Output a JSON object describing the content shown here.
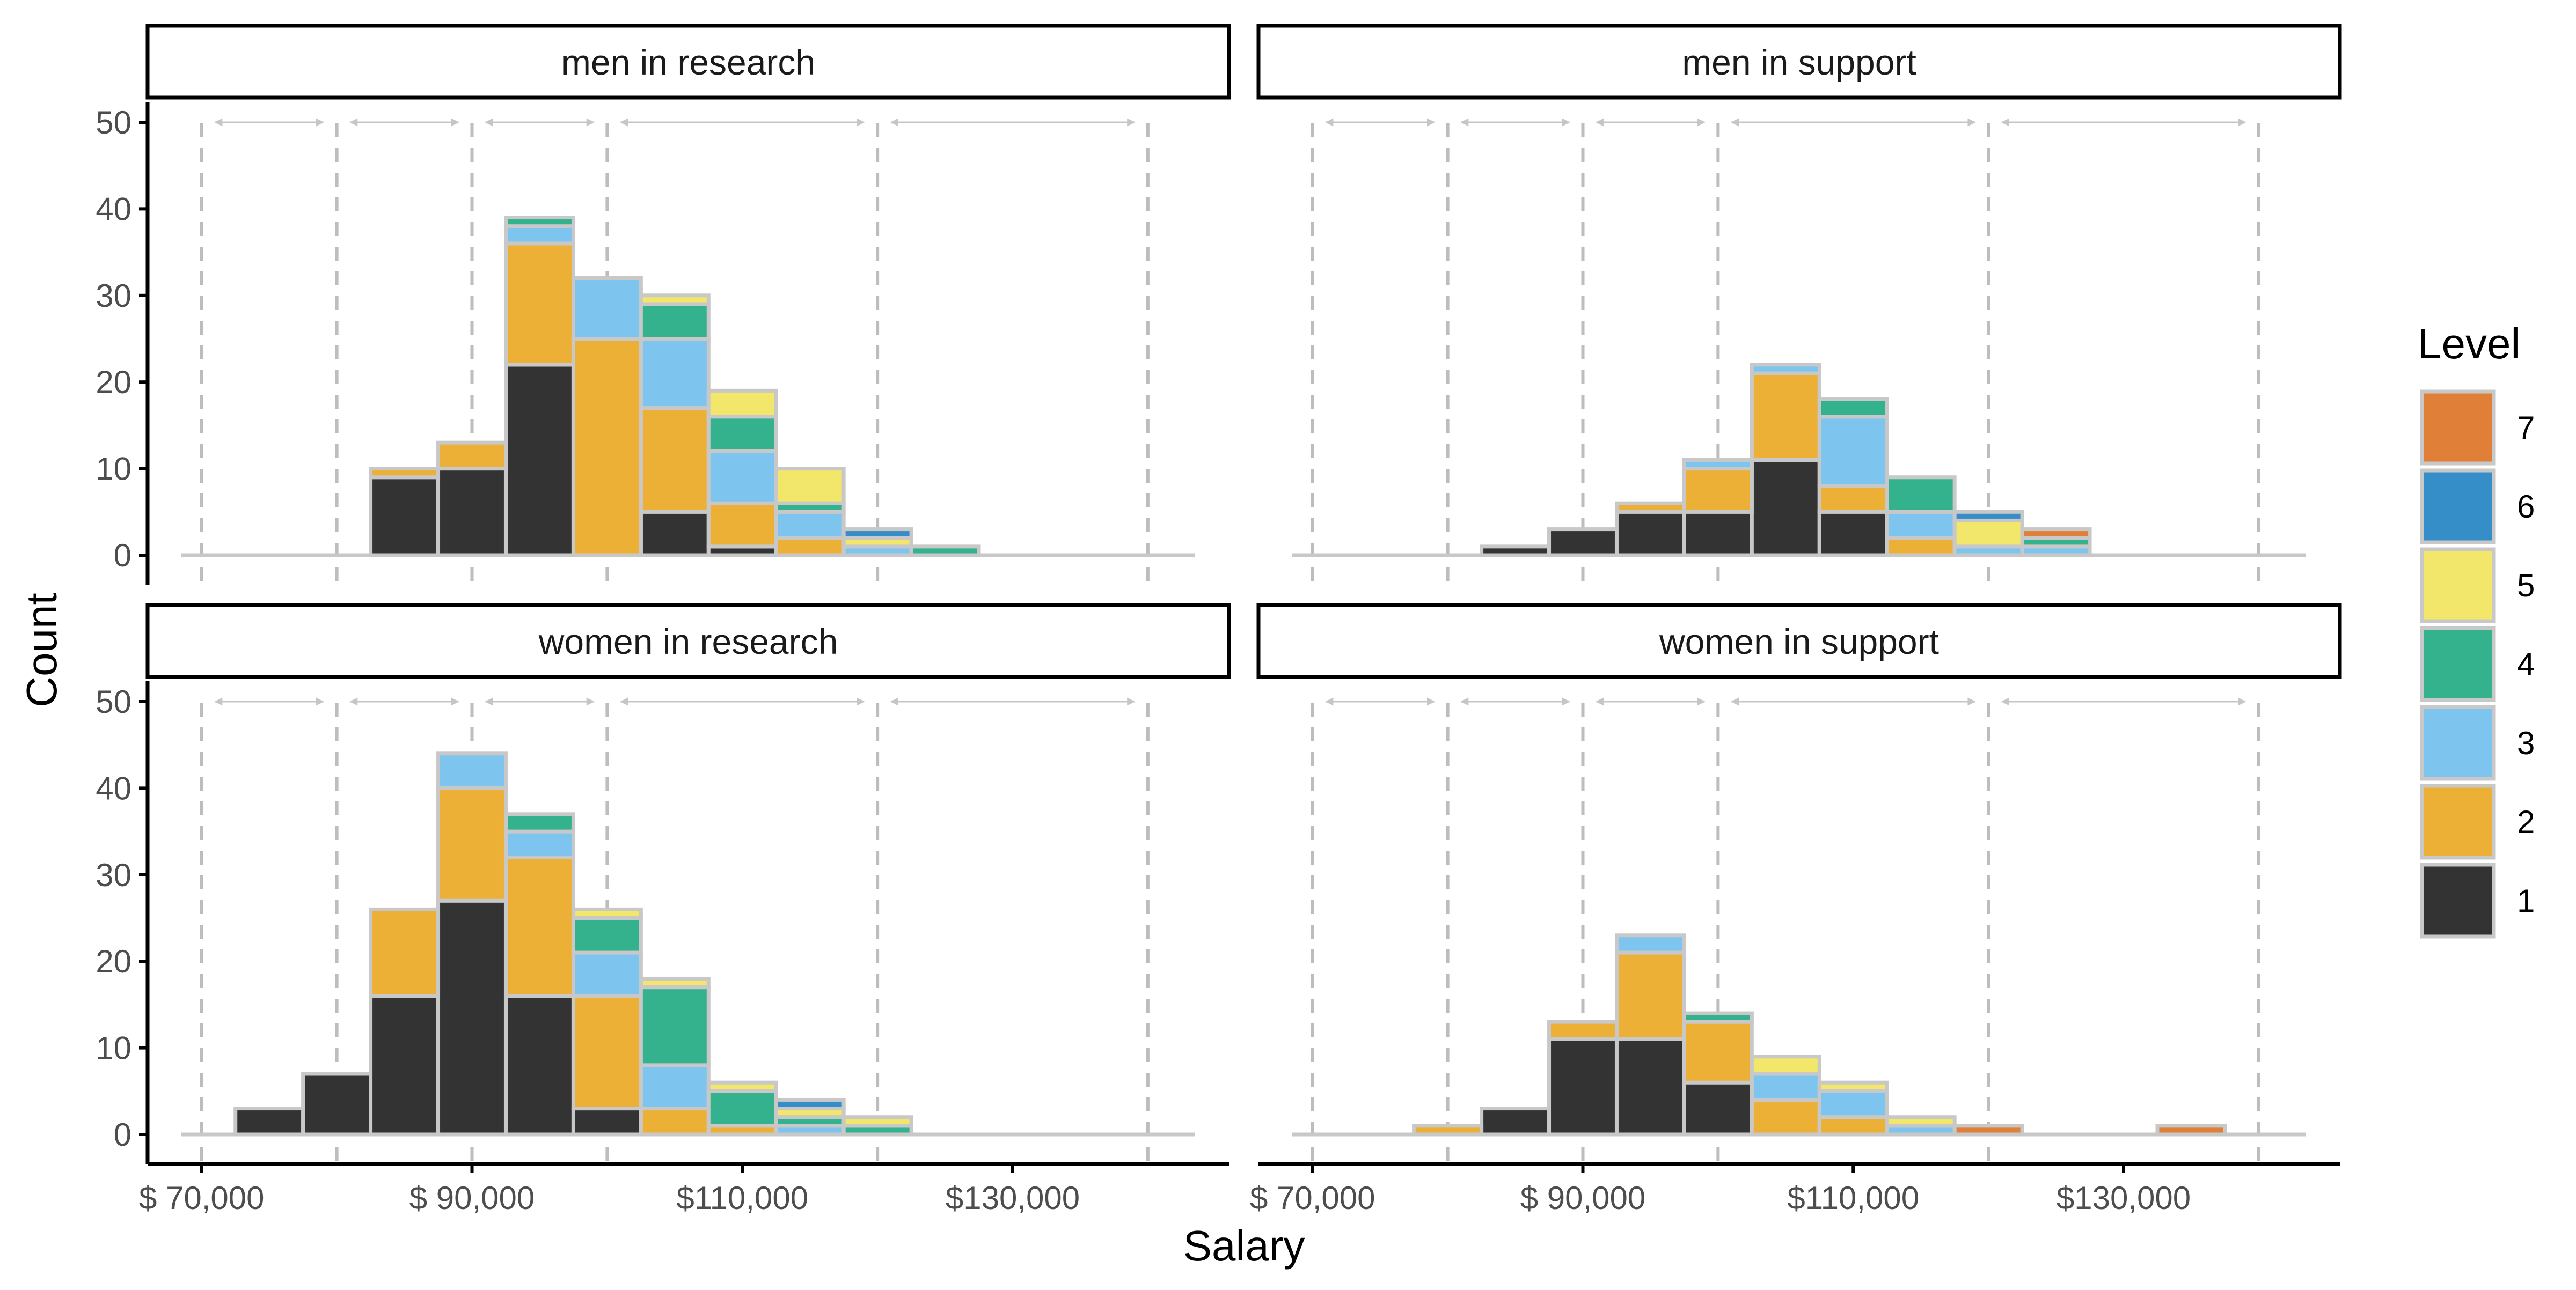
{
  "chart_data": {
    "type": "bar",
    "subtype": "stacked histogram, faceted 2x2",
    "xlabel": "Salary",
    "ylabel": "Count",
    "xlim": [
      66000,
      146000
    ],
    "ylim": [
      0,
      50
    ],
    "x_ticks": [
      70000,
      90000,
      110000,
      130000
    ],
    "x_tick_labels": [
      "$ 70,000",
      "$ 90,000",
      "$110,000",
      "$130,000"
    ],
    "y_ticks": [
      0,
      10,
      20,
      30,
      40,
      50
    ],
    "y_tick_labels": [
      "0",
      "10",
      "20",
      "30",
      "40",
      "50"
    ],
    "bin_width": 5000,
    "bin_starts": [
      72500,
      77500,
      82500,
      87500,
      92500,
      97500,
      102500,
      107500,
      112500,
      117500,
      122500,
      127500,
      132500,
      137500
    ],
    "reference_lines": [
      70000,
      80000,
      90000,
      100000,
      120000,
      140000
    ],
    "range_arrows": [
      [
        71000,
        79000
      ],
      [
        81000,
        89000
      ],
      [
        91000,
        99000
      ],
      [
        101000,
        119000
      ],
      [
        121000,
        139000
      ]
    ],
    "arrow_y": 50,
    "grid": false,
    "legend": {
      "title": "Level",
      "placement": "right",
      "levels": [
        "1",
        "2",
        "3",
        "4",
        "5",
        "6",
        "7"
      ],
      "colors": {
        "1": "#333333",
        "2": "#ebb035",
        "3": "#7dc4ee",
        "4": "#34b28e",
        "5": "#f2e66b",
        "6": "#358ec7",
        "7": "#e07f38"
      }
    },
    "colors": {
      "bar_outline": "#c8c8c8",
      "ref_line": "#bdbdbd",
      "arrow": "#c6c6c6",
      "axis": "#000000",
      "tick_label": "#4d4d4d"
    },
    "panels": [
      {
        "title": "men in research",
        "series": [
          {
            "level": "1",
            "values": [
              0,
              0,
              9,
              10,
              22,
              0,
              5,
              1,
              0,
              0,
              0,
              0,
              0,
              0
            ]
          },
          {
            "level": "2",
            "values": [
              0,
              0,
              1,
              3,
              14,
              25,
              12,
              5,
              2,
              0,
              0,
              0,
              0,
              0
            ]
          },
          {
            "level": "3",
            "values": [
              0,
              0,
              0,
              0,
              2,
              7,
              8,
              6,
              3,
              1,
              0,
              0,
              0,
              0
            ]
          },
          {
            "level": "4",
            "values": [
              0,
              0,
              0,
              0,
              1,
              0,
              4,
              4,
              1,
              0,
              1,
              0,
              0,
              0
            ]
          },
          {
            "level": "5",
            "values": [
              0,
              0,
              0,
              0,
              0,
              0,
              1,
              3,
              4,
              1,
              0,
              0,
              0,
              0
            ]
          },
          {
            "level": "6",
            "values": [
              0,
              0,
              0,
              0,
              0,
              0,
              0,
              0,
              0,
              1,
              0,
              0,
              0,
              0
            ]
          },
          {
            "level": "7",
            "values": [
              0,
              0,
              0,
              0,
              0,
              0,
              0,
              0,
              0,
              0,
              0,
              0,
              0,
              0
            ]
          }
        ]
      },
      {
        "title": "men in support",
        "series": [
          {
            "level": "1",
            "values": [
              0,
              0,
              1,
              3,
              5,
              5,
              11,
              5,
              0,
              0,
              0,
              0,
              0,
              0
            ]
          },
          {
            "level": "2",
            "values": [
              0,
              0,
              0,
              0,
              1,
              5,
              10,
              3,
              2,
              0,
              0,
              0,
              0,
              0
            ]
          },
          {
            "level": "3",
            "values": [
              0,
              0,
              0,
              0,
              0,
              1,
              1,
              8,
              3,
              1,
              1,
              0,
              0,
              0
            ]
          },
          {
            "level": "4",
            "values": [
              0,
              0,
              0,
              0,
              0,
              0,
              0,
              2,
              4,
              0,
              1,
              0,
              0,
              0
            ]
          },
          {
            "level": "5",
            "values": [
              0,
              0,
              0,
              0,
              0,
              0,
              0,
              0,
              0,
              3,
              0,
              0,
              0,
              0
            ]
          },
          {
            "level": "6",
            "values": [
              0,
              0,
              0,
              0,
              0,
              0,
              0,
              0,
              0,
              1,
              0,
              0,
              0,
              0
            ]
          },
          {
            "level": "7",
            "values": [
              0,
              0,
              0,
              0,
              0,
              0,
              0,
              0,
              0,
              0,
              1,
              0,
              0,
              0
            ]
          }
        ]
      },
      {
        "title": "women in research",
        "series": [
          {
            "level": "1",
            "values": [
              3,
              7,
              16,
              27,
              16,
              3,
              0,
              0,
              0,
              0,
              0,
              0,
              0,
              0
            ]
          },
          {
            "level": "2",
            "values": [
              0,
              0,
              10,
              13,
              16,
              13,
              3,
              1,
              0,
              0,
              0,
              0,
              0,
              0
            ]
          },
          {
            "level": "3",
            "values": [
              0,
              0,
              0,
              4,
              3,
              5,
              5,
              0,
              1,
              0,
              0,
              0,
              0,
              0
            ]
          },
          {
            "level": "4",
            "values": [
              0,
              0,
              0,
              0,
              2,
              4,
              9,
              4,
              1,
              1,
              0,
              0,
              0,
              0
            ]
          },
          {
            "level": "5",
            "values": [
              0,
              0,
              0,
              0,
              0,
              1,
              1,
              1,
              1,
              1,
              0,
              0,
              0,
              0
            ]
          },
          {
            "level": "6",
            "values": [
              0,
              0,
              0,
              0,
              0,
              0,
              0,
              0,
              1,
              0,
              0,
              0,
              0,
              0
            ]
          },
          {
            "level": "7",
            "values": [
              0,
              0,
              0,
              0,
              0,
              0,
              0,
              0,
              0,
              0,
              0,
              0,
              0,
              0
            ]
          }
        ]
      },
      {
        "title": "women in support",
        "series": [
          {
            "level": "1",
            "values": [
              0,
              0,
              3,
              11,
              11,
              6,
              0,
              0,
              0,
              0,
              0,
              0,
              0,
              0
            ]
          },
          {
            "level": "2",
            "values": [
              0,
              1,
              0,
              2,
              10,
              7,
              4,
              2,
              0,
              0,
              0,
              0,
              0,
              0
            ]
          },
          {
            "level": "3",
            "values": [
              0,
              0,
              0,
              0,
              2,
              0,
              3,
              3,
              1,
              0,
              0,
              0,
              0,
              0
            ]
          },
          {
            "level": "4",
            "values": [
              0,
              0,
              0,
              0,
              0,
              1,
              0,
              0,
              0,
              0,
              0,
              0,
              0,
              0
            ]
          },
          {
            "level": "5",
            "values": [
              0,
              0,
              0,
              0,
              0,
              0,
              2,
              1,
              1,
              0,
              0,
              0,
              0,
              0
            ]
          },
          {
            "level": "6",
            "values": [
              0,
              0,
              0,
              0,
              0,
              0,
              0,
              0,
              0,
              0,
              0,
              0,
              0,
              0
            ]
          },
          {
            "level": "7",
            "values": [
              0,
              0,
              0,
              0,
              0,
              0,
              0,
              0,
              0,
              1,
              0,
              0,
              1,
              0
            ]
          }
        ]
      }
    ]
  }
}
